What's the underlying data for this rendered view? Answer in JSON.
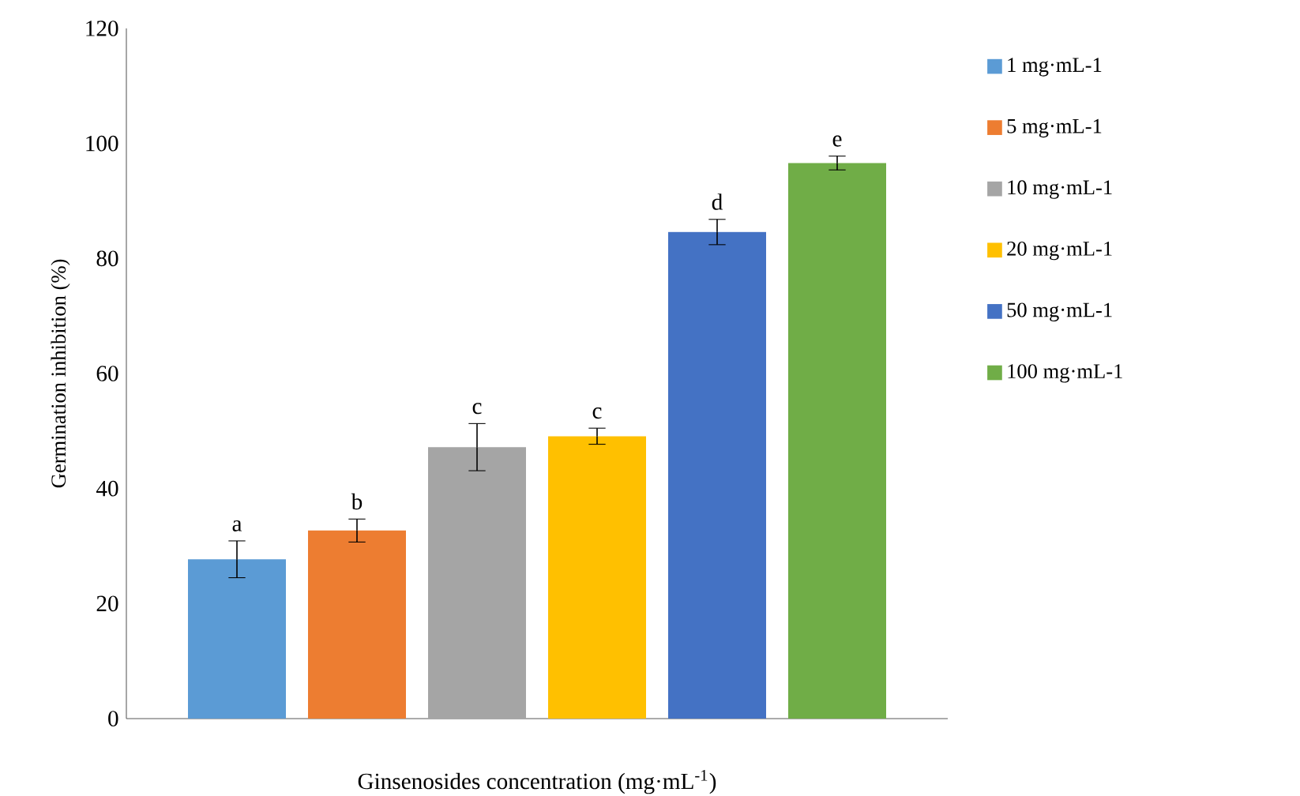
{
  "chart_data": {
    "type": "bar",
    "xlabel": "Ginsenosides concentration (mg·mL$^{-1}$)",
    "ylabel": "Germination inhibition (%)",
    "categories": [
      null
    ],
    "series": [
      {
        "name": "1 mg·mL-1",
        "color": "#5b9bd5",
        "values": [
          27.7
        ],
        "errors": [
          3.2
        ]
      },
      {
        "name": "5 mg·mL-1",
        "color": "#ed7d31",
        "values": [
          32.7
        ],
        "errors": [
          2.0
        ]
      },
      {
        "name": "10 mg·mL-1",
        "color": "#a5a5a5",
        "values": [
          47.2
        ],
        "errors": [
          4.1
        ]
      },
      {
        "name": "20 mg·mL-1",
        "color": "#ffc000",
        "values": [
          49.1
        ],
        "errors": [
          1.4
        ]
      },
      {
        "name": "50 mg·mL-1",
        "color": "#4472c4",
        "values": [
          84.6
        ],
        "errors": [
          2.2
        ]
      },
      {
        "name": "100 mg·mL-1",
        "color": "#70ad47",
        "values": [
          96.6
        ],
        "errors": [
          1.2
        ]
      }
    ],
    "annotations": [
      "a",
      "b",
      "c",
      "c",
      "d",
      "e"
    ],
    "ylim": [
      0,
      120
    ],
    "yticks": [
      0,
      20,
      40,
      60,
      80,
      100,
      120
    ],
    "grid": false,
    "legend": "right"
  }
}
